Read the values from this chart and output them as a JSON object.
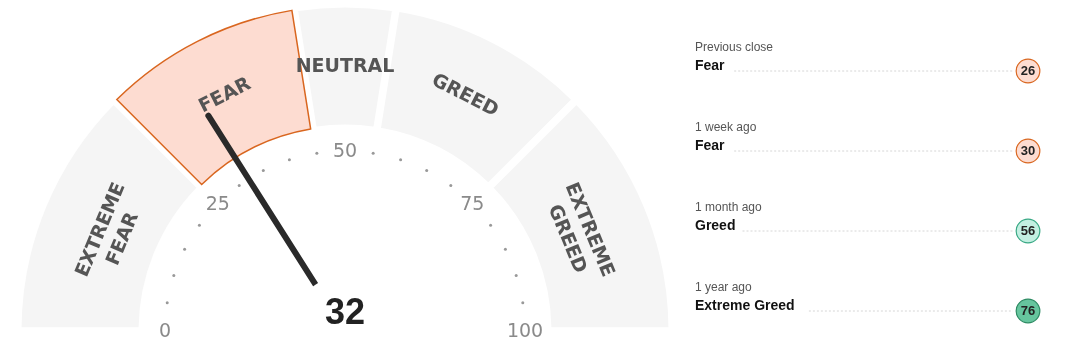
{
  "chart_data": [
    {
      "type": "donut",
      "categories": [
        "EXTREME FEAR",
        "FEAR",
        "NEUTRAL",
        "GREED",
        "EXTREME GREED"
      ],
      "values": [
        25,
        20,
        10,
        20,
        25
      ],
      "colors": [
        "#f5f5f5",
        "#fddcd1",
        "#f5f5f5",
        "#f5f5f5",
        "#f5f5f5"
      ],
      "needle": "FEAR",
      "annotations": [
        "32",
        "0",
        "25",
        "50",
        "75",
        "100"
      ]
    },
    {
      "type": "other",
      "annotations": [
        "Previous close",
        "Fear",
        "26",
        "1 week ago",
        "Fear",
        "30",
        "1 month ago",
        "Greed",
        "56",
        "1 year ago",
        "Extreme Greed",
        "76"
      ]
    }
  ]
}
